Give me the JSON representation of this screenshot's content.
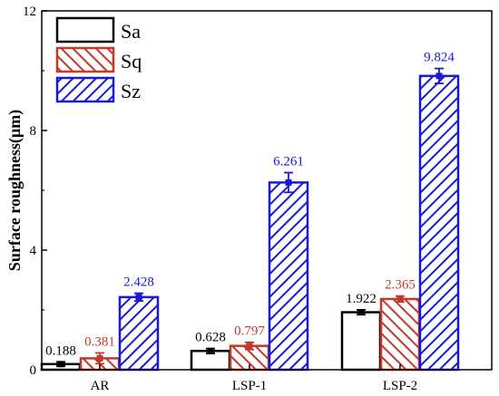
{
  "chart_data": {
    "type": "bar",
    "title": "",
    "xlabel": "",
    "ylabel": "Surface roughness(μm)",
    "ylim": [
      0,
      12
    ],
    "yticks": [
      "0",
      "4",
      "8",
      "12"
    ],
    "categories": [
      "AR",
      "LSP-1",
      "LSP-2"
    ],
    "legend_position": "top-left",
    "series": [
      {
        "name": "Sa",
        "values": [
          0.188,
          0.628,
          1.922
        ],
        "errors": [
          0.07,
          0.08,
          0.08
        ],
        "labels": [
          "0.188",
          "0.628",
          "1.922"
        ],
        "color": "#000000",
        "fill": "none",
        "hatch": false
      },
      {
        "name": "Sq",
        "values": [
          0.381,
          0.797,
          2.365
        ],
        "errors": [
          0.18,
          0.12,
          0.1
        ],
        "labels": [
          "0.381",
          "0.797",
          "2.365"
        ],
        "color": "#c0392b",
        "fill": "hatch",
        "hatch": true
      },
      {
        "name": "Sz",
        "values": [
          2.428,
          6.261,
          9.824
        ],
        "errors": [
          0.13,
          0.33,
          0.25
        ],
        "labels": [
          "2.428",
          "6.261",
          "9.824"
        ],
        "color": "#1a1ad6",
        "fill": "hatch",
        "hatch": true
      }
    ]
  }
}
